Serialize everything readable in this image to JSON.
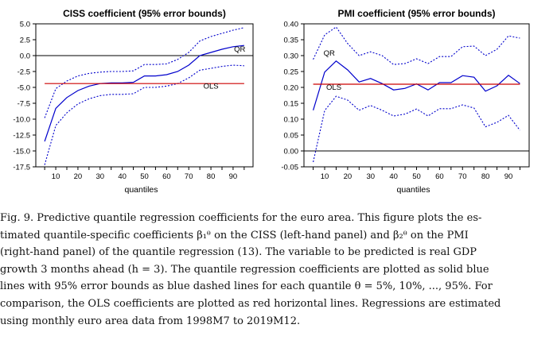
{
  "chart_data": [
    {
      "type": "line",
      "title": "CISS coefficient (95% error bounds)",
      "xlabel": "quantiles",
      "ylabel": "",
      "xlim": [
        1,
        99
      ],
      "ylim": [
        -17.5,
        5.0
      ],
      "yticks": [
        "5.0",
        "2.5",
        "0.0",
        "-2.5",
        "-5.0",
        "-7.5",
        "-10.0",
        "-12.5",
        "-15.0",
        "-17.5"
      ],
      "ytick_values": [
        5.0,
        2.5,
        0.0,
        -2.5,
        -5.0,
        -7.5,
        -10.0,
        -12.5,
        -15.0,
        -17.5
      ],
      "xticks": [
        "10",
        "20",
        "30",
        "40",
        "50",
        "60",
        "70",
        "80",
        "90"
      ],
      "xtick_values": [
        10,
        20,
        30,
        40,
        50,
        60,
        70,
        80,
        90
      ],
      "x": [
        5,
        10,
        15,
        20,
        25,
        30,
        35,
        40,
        45,
        50,
        55,
        60,
        65,
        70,
        75,
        80,
        85,
        90,
        95
      ],
      "series": [
        {
          "name": "QR",
          "style": "solid",
          "color": "#0000cc",
          "values": [
            -13.5,
            -8.3,
            -6.6,
            -5.5,
            -4.8,
            -4.4,
            -4.3,
            -4.3,
            -4.2,
            -3.2,
            -3.2,
            -3.0,
            -2.5,
            -1.5,
            0.0,
            0.5,
            1.0,
            1.4,
            1.6
          ]
        },
        {
          "name": "upper",
          "style": "dashed",
          "color": "#0000cc",
          "values": [
            -9.8,
            -5.2,
            -4.0,
            -3.2,
            -2.8,
            -2.6,
            -2.5,
            -2.5,
            -2.4,
            -1.4,
            -1.4,
            -1.3,
            -0.6,
            0.5,
            2.3,
            3.0,
            3.5,
            4.0,
            4.4
          ]
        },
        {
          "name": "lower",
          "style": "dashed",
          "color": "#0000cc",
          "values": [
            -17.2,
            -11.0,
            -9.0,
            -7.6,
            -6.8,
            -6.3,
            -6.1,
            -6.1,
            -6.0,
            -5.0,
            -5.0,
            -4.8,
            -4.4,
            -3.5,
            -2.3,
            -2.0,
            -1.7,
            -1.5,
            -1.6
          ]
        },
        {
          "name": "OLS",
          "style": "solid",
          "color": "#cc0000",
          "values": [
            -4.4,
            -4.4,
            -4.4,
            -4.4,
            -4.4,
            -4.4,
            -4.4,
            -4.4,
            -4.4,
            -4.4,
            -4.4,
            -4.4,
            -4.4,
            -4.4,
            -4.4,
            -4.4,
            -4.4,
            -4.4,
            -4.4
          ]
        }
      ],
      "annotations": [
        {
          "text": "QR",
          "x": 93,
          "y": 0.6
        },
        {
          "text": "OLS",
          "x": 80,
          "y": -5.2
        }
      ]
    },
    {
      "type": "line",
      "title": "PMI coefficient (95% error bounds)",
      "xlabel": "quantiles",
      "ylabel": "",
      "xlim": [
        1,
        99
      ],
      "ylim": [
        -0.05,
        0.4
      ],
      "yticks": [
        "0.40",
        "0.35",
        "0.30",
        "0.25",
        "0.20",
        "0.15",
        "0.10",
        "0.05",
        "0.00",
        "-0.05"
      ],
      "ytick_values": [
        0.4,
        0.35,
        0.3,
        0.25,
        0.2,
        0.15,
        0.1,
        0.05,
        0.0,
        -0.05
      ],
      "xticks": [
        "10",
        "20",
        "30",
        "40",
        "50",
        "60",
        "70",
        "80",
        "90"
      ],
      "xtick_values": [
        10,
        20,
        30,
        40,
        50,
        60,
        70,
        80,
        90
      ],
      "x": [
        5,
        10,
        15,
        20,
        25,
        30,
        35,
        40,
        45,
        50,
        55,
        60,
        65,
        70,
        75,
        80,
        85,
        90,
        95
      ],
      "series": [
        {
          "name": "QR",
          "style": "solid",
          "color": "#0000cc",
          "values": [
            0.128,
            0.248,
            0.283,
            0.255,
            0.217,
            0.228,
            0.212,
            0.192,
            0.197,
            0.211,
            0.192,
            0.215,
            0.215,
            0.237,
            0.232,
            0.188,
            0.205,
            0.238,
            0.212
          ]
        },
        {
          "name": "upper",
          "style": "dashed",
          "color": "#0000cc",
          "values": [
            0.288,
            0.365,
            0.39,
            0.338,
            0.3,
            0.312,
            0.3,
            0.272,
            0.275,
            0.29,
            0.275,
            0.297,
            0.297,
            0.328,
            0.33,
            0.3,
            0.32,
            0.362,
            0.355
          ]
        },
        {
          "name": "lower",
          "style": "dashed",
          "color": "#0000cc",
          "values": [
            -0.035,
            0.127,
            0.172,
            0.16,
            0.128,
            0.143,
            0.128,
            0.11,
            0.116,
            0.132,
            0.11,
            0.133,
            0.133,
            0.145,
            0.135,
            0.076,
            0.09,
            0.112,
            0.065
          ]
        },
        {
          "name": "OLS",
          "style": "solid",
          "color": "#cc0000",
          "values": [
            0.21,
            0.21,
            0.21,
            0.21,
            0.21,
            0.21,
            0.21,
            0.21,
            0.21,
            0.21,
            0.21,
            0.21,
            0.21,
            0.21,
            0.21,
            0.21,
            0.21,
            0.21,
            0.21
          ]
        }
      ],
      "annotations": [
        {
          "text": "QR",
          "x": 12,
          "y": 0.3
        },
        {
          "text": "OLS",
          "x": 14,
          "y": 0.193
        }
      ]
    }
  ],
  "caption": [
    "Fig. 9.  Predictive quantile regression coefficients for the euro area.  This figure plots the es-",
    "timated quantile-specific coefficients β₁ᶿ on the CISS (left-hand panel) and β₂ᶿ on the PMI",
    "(right-hand panel) of the quantile regression (13).  The variable to be predicted is real GDP",
    "growth 3 months ahead (h = 3).  The quantile regression coefficients are plotted as solid blue",
    "lines with 95% error bounds as blue dashed lines for each quantile θ = 5%, 10%, ..., 95%.  For",
    "comparison, the OLS coefficients are plotted as red horizontal lines.  Regressions are estimated",
    "using monthly euro area data from 1998M7 to 2019M12."
  ]
}
